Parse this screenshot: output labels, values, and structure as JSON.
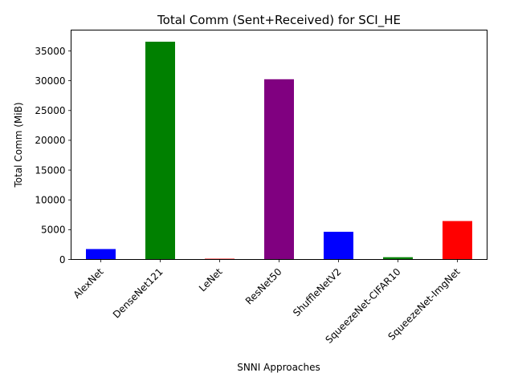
{
  "chart_data": {
    "type": "bar",
    "title": "Total Comm (Sent+Received) for SCI_HE",
    "xlabel": "SNNI Approaches",
    "ylabel": "Total Comm (MiB)",
    "categories": [
      "AlexNet",
      "DenseNet121",
      "LeNet",
      "ResNet50",
      "ShuffleNetV2",
      "SqueezeNet-CIFAR10",
      "SqueezeNet-ImgNet"
    ],
    "values": [
      1750,
      36550,
      130,
      30250,
      4650,
      380,
      6450
    ],
    "colors": [
      "#0000ff",
      "#008000",
      "#ff0000",
      "#800080",
      "#0000ff",
      "#008000",
      "#ff0000"
    ],
    "ylim": [
      0,
      38500
    ],
    "yticks": [
      0,
      5000,
      10000,
      15000,
      20000,
      25000,
      30000,
      35000
    ],
    "ytick_labels": [
      "0",
      "5000",
      "10000",
      "15000",
      "20000",
      "25000",
      "30000",
      "35000"
    ],
    "grid": false,
    "legend": false
  }
}
